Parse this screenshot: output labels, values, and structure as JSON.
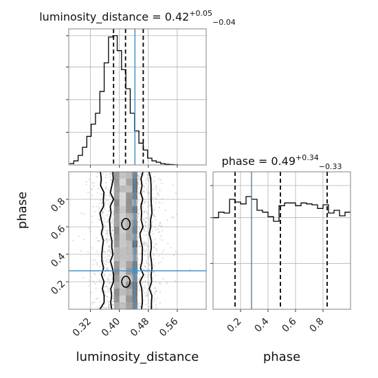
{
  "chart_data": [
    {
      "type": "histogram",
      "panel": "luminosity_distance marginal",
      "title": {
        "param": "luminosity_distance",
        "value": "0.42",
        "plus": "+0.05",
        "minus": "−0.04"
      },
      "xlim": [
        0.26,
        0.64
      ],
      "ylim": [
        0,
        1
      ],
      "grid": true,
      "bin_edges": [
        0.262,
        0.274,
        0.286,
        0.298,
        0.31,
        0.322,
        0.334,
        0.346,
        0.358,
        0.37,
        0.382,
        0.394,
        0.406,
        0.418,
        0.43,
        0.442,
        0.454,
        0.466,
        0.478,
        0.49,
        0.502,
        0.514,
        0.526,
        0.538,
        0.55,
        0.562
      ],
      "counts": [
        0.01,
        0.03,
        0.07,
        0.13,
        0.21,
        0.3,
        0.38,
        0.54,
        0.75,
        0.94,
        0.95,
        0.84,
        0.7,
        0.56,
        0.38,
        0.25,
        0.16,
        0.11,
        0.05,
        0.03,
        0.02,
        0.01,
        0.005,
        0.003,
        0.001
      ],
      "quantile_lines": [
        0.384,
        0.417,
        0.466
      ],
      "truth": 0.443
    },
    {
      "type": "histogram",
      "panel": "phase marginal",
      "title": {
        "param": "phase",
        "value": "0.49",
        "plus": "+0.34",
        "minus": "−0.33"
      },
      "xlim": [
        0.0,
        1.0
      ],
      "ylim": [
        0,
        1.5
      ],
      "grid": true,
      "bin_edges": [
        0.0,
        0.04,
        0.08,
        0.12,
        0.16,
        0.2,
        0.24,
        0.28,
        0.32,
        0.36,
        0.4,
        0.44,
        0.48,
        0.52,
        0.56,
        0.6,
        0.64,
        0.68,
        0.72,
        0.76,
        0.8,
        0.84,
        0.88,
        0.92,
        0.96,
        1.0
      ],
      "counts": [
        1.0,
        1.06,
        1.05,
        1.2,
        1.17,
        1.15,
        1.23,
        1.2,
        1.08,
        1.06,
        1.01,
        0.96,
        1.13,
        1.16,
        1.16,
        1.13,
        1.16,
        1.15,
        1.14,
        1.1,
        1.14,
        1.05,
        1.08,
        1.02,
        1.06
      ],
      "quantile_lines": [
        0.16,
        0.49,
        0.83
      ],
      "truth": 0.28
    },
    {
      "type": "scatter",
      "panel": "2D posterior luminosity_distance vs phase",
      "xlabel": "luminosity_distance",
      "ylabel": "phase",
      "xlim": [
        0.26,
        0.64
      ],
      "ylim": [
        0.0,
        1.0
      ],
      "xticks": [
        "0.32",
        "0.40",
        "0.48",
        "0.56"
      ],
      "xtick_values": [
        0.32,
        0.4,
        0.48,
        0.56
      ],
      "yticks": [
        "0.2",
        "0.4",
        "0.6",
        "0.8"
      ],
      "ytick_values": [
        0.2,
        0.4,
        0.6,
        0.8
      ],
      "density_columns": [
        {
          "x0": 0.385,
          "x1": 0.4,
          "shade": 0.55
        },
        {
          "x0": 0.4,
          "x1": 0.418,
          "shade": 0.3
        },
        {
          "x0": 0.418,
          "x1": 0.436,
          "shade": 0.5
        },
        {
          "x0": 0.436,
          "x1": 0.45,
          "shade": 0.7
        }
      ],
      "contours": [
        {
          "level": "outer",
          "x_left": 0.352,
          "x_right": 0.488
        },
        {
          "level": "inner",
          "x_left": 0.378,
          "x_right": 0.462
        }
      ],
      "truth": {
        "x": 0.443,
        "y": 0.28
      }
    }
  ],
  "colors": {
    "truth": "#4c8fbf",
    "hist": "#000000",
    "grid": "#b0b0b0",
    "points": "#9a9a9a",
    "frame": "#808080"
  }
}
